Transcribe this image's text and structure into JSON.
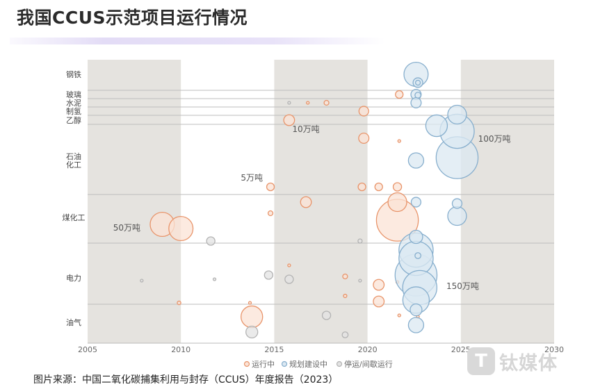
{
  "title": "我国CCUS示范项目运行情况",
  "source": "图片来源：中国二氧化碳捕集利用与封存（CCUS）年度报告（2023）",
  "watermark": {
    "logo": "T",
    "text": "钛媒体"
  },
  "chart_data": {
    "type": "scatter",
    "xlim": [
      2005,
      2030
    ],
    "x_ticks": [
      "2005",
      "2010",
      "2015",
      "2020",
      "2025",
      "2030"
    ],
    "shaded_periods": [
      [
        2005,
        2010
      ],
      [
        2015,
        2020
      ],
      [
        2025,
        2030
      ]
    ],
    "categories": [
      {
        "key": "steel",
        "label": [
          "钢铁"
        ]
      },
      {
        "key": "glass",
        "label": [
          "玻璃"
        ]
      },
      {
        "key": "cement",
        "label": [
          "水泥"
        ]
      },
      {
        "key": "hydrogen",
        "label": [
          "制氢"
        ]
      },
      {
        "key": "ethanol",
        "label": [
          "乙醇"
        ]
      },
      {
        "key": "petrochem",
        "label": [
          "石油",
          "化工"
        ]
      },
      {
        "key": "coalchem",
        "label": [
          "煤化工"
        ]
      },
      {
        "key": "power",
        "label": [
          "电力"
        ]
      },
      {
        "key": "oilgas",
        "label": [
          "油气"
        ]
      }
    ],
    "size_annotations": [
      {
        "text": "10万吨",
        "x": 2016.7,
        "cat": "ethanol"
      },
      {
        "text": "100万吨",
        "x": 2026.8,
        "cat": "petrochem"
      },
      {
        "text": "5万吨",
        "x": 2013.8,
        "cat": "petrochem"
      },
      {
        "text": "50万吨",
        "x": 2007.1,
        "cat": "coalchem"
      },
      {
        "text": "150万吨",
        "x": 2025.1,
        "cat": "power"
      }
    ],
    "legend": [
      {
        "key": "operating",
        "label": "运行中",
        "stroke": "#e8946a",
        "fill": "#fbe3d6"
      },
      {
        "key": "planned",
        "label": "规划建设中",
        "stroke": "#86aecd",
        "fill": "#dbe8f2"
      },
      {
        "key": "stopped",
        "label": "停运/间歇运行",
        "stroke": "#b3b3b3",
        "fill": "#e3e3e3"
      }
    ],
    "series": [
      {
        "name": "运行中",
        "key": "operating",
        "points": [
          {
            "x": 2016.8,
            "cat": "cement",
            "s": 0.2
          },
          {
            "x": 2017.8,
            "cat": "cement",
            "s": 2
          },
          {
            "x": 2015.8,
            "cat": "ethanol",
            "s": 10
          },
          {
            "x": 2019.8,
            "cat": "hydrogen",
            "s": 8
          },
          {
            "x": 2021.7,
            "cat": "glass",
            "s": 5
          },
          {
            "x": 2019.8,
            "cat": "petrochem",
            "s": 9,
            "dy": -0.8
          },
          {
            "x": 2021.7,
            "cat": "petrochem",
            "s": 0.6,
            "dy": -0.7
          },
          {
            "x": 2014.8,
            "cat": "petrochem",
            "s": 5,
            "dy": 0.95
          },
          {
            "x": 2019.7,
            "cat": "petrochem",
            "s": 5,
            "dy": 0.95
          },
          {
            "x": 2020.6,
            "cat": "petrochem",
            "s": 5,
            "dy": 0.95
          },
          {
            "x": 2021.6,
            "cat": "coalchem",
            "s": 6,
            "dy": -1.1
          },
          {
            "x": 2021.6,
            "cat": "coalchem",
            "s": 30,
            "dy": -0.55
          },
          {
            "x": 2016.7,
            "cat": "coalchem",
            "s": 10,
            "dy": -0.55
          },
          {
            "x": 2014.8,
            "cat": "coalchem",
            "s": 2,
            "dy": -0.15
          },
          {
            "x": 2009.0,
            "cat": "coalchem",
            "s": 50,
            "dy": 0.25
          },
          {
            "x": 2010.0,
            "cat": "coalchem",
            "s": 50,
            "dy": 0.4
          },
          {
            "x": 2021.6,
            "cat": "coalchem",
            "s": 150,
            "dy": 0.1
          },
          {
            "x": 2015.8,
            "cat": "power",
            "s": 0.4,
            "dy": -0.45
          },
          {
            "x": 2018.8,
            "cat": "power",
            "s": 2,
            "dy": -0.05
          },
          {
            "x": 2021.6,
            "cat": "power",
            "s": 0.5,
            "dy": 0.15
          },
          {
            "x": 2020.6,
            "cat": "power",
            "s": 10,
            "dy": 0.25
          },
          {
            "x": 2018.8,
            "cat": "power",
            "s": 1,
            "dy": 0.65
          },
          {
            "x": 2009.9,
            "cat": "power",
            "s": 1.1,
            "dy": 0.9
          },
          {
            "x": 2020.6,
            "cat": "power",
            "s": 10,
            "dy": 0.85
          },
          {
            "x": 2013.7,
            "cat": "oilgas",
            "s": 0.5,
            "dy": -0.7
          },
          {
            "x": 2013.8,
            "cat": "oilgas",
            "s": 40,
            "dy": -0.2
          },
          {
            "x": 2021.7,
            "cat": "oilgas",
            "s": 0.1,
            "dy": -0.25
          },
          {
            "x": 2022.7,
            "cat": "oilgas",
            "s": 0.1,
            "dy": -0.2
          }
        ]
      },
      {
        "name": "规划建设中",
        "key": "planned",
        "points": [
          {
            "x": 2022.6,
            "cat": "steel",
            "s": 50,
            "dy": 0
          },
          {
            "x": 2022.7,
            "cat": "steel",
            "s": 8,
            "dy": 0.3
          },
          {
            "x": 2022.7,
            "cat": "steel",
            "s": 2,
            "dy": 0.3
          },
          {
            "x": 2022.7,
            "cat": "steel",
            "s": 3,
            "dy": 0.75
          },
          {
            "x": 2022.6,
            "cat": "cement",
            "s": 9,
            "dy": -0.3
          },
          {
            "x": 2022.6,
            "cat": "cement",
            "s": 9,
            "dy": 0
          },
          {
            "x": 2024.8,
            "cat": "petrochem",
            "s": 30,
            "dy": -1.65
          },
          {
            "x": 2023.7,
            "cat": "petrochem",
            "s": 40,
            "dy": -1.25
          },
          {
            "x": 2024.8,
            "cat": "petrochem",
            "s": 100,
            "dy": -1.05
          },
          {
            "x": 2024.8,
            "cat": "petrochem",
            "s": 150,
            "dy": -0.1
          },
          {
            "x": 2022.6,
            "cat": "petrochem",
            "s": 20,
            "dy": 0
          },
          {
            "x": 2024.8,
            "cat": "petrochem",
            "s": 30,
            "dy": 2.0
          },
          {
            "x": 2024.8,
            "cat": "coalchem",
            "s": 8,
            "dy": -0.5
          },
          {
            "x": 2022.6,
            "cat": "coalchem",
            "s": 8,
            "dy": -0.55
          },
          {
            "x": 2022.6,
            "cat": "coalchem",
            "s": 15,
            "dy": 0.7
          },
          {
            "x": 2022.6,
            "cat": "power",
            "s": 100,
            "dy": -1.0
          },
          {
            "x": 2022.6,
            "cat": "power",
            "s": 100,
            "dy": -0.7
          },
          {
            "x": 2022.6,
            "cat": "power",
            "s": 150,
            "dy": -0.1
          },
          {
            "x": 2022.7,
            "cat": "power",
            "s": 3,
            "dy": -0.8
          },
          {
            "x": 2022.8,
            "cat": "power",
            "s": 100,
            "dy": 0.35
          },
          {
            "x": 2022.6,
            "cat": "power",
            "s": 60,
            "dy": 0.8
          },
          {
            "x": 2022.6,
            "cat": "oilgas",
            "s": 12,
            "dy": -0.45
          },
          {
            "x": 2022.6,
            "cat": "oilgas",
            "s": 20,
            "dy": 0.1
          }
        ]
      },
      {
        "name": "停运/间歇运行",
        "key": "stopped",
        "points": [
          {
            "x": 2015.8,
            "cat": "cement",
            "s": 0.3
          },
          {
            "x": 2011.6,
            "cat": "coalchem",
            "s": 6,
            "dy": 0.85
          },
          {
            "x": 2019.6,
            "cat": "coalchem",
            "s": 1.5,
            "dy": 0.85
          },
          {
            "x": 2007.9,
            "cat": "power",
            "s": 0.3,
            "dy": 0.1
          },
          {
            "x": 2011.8,
            "cat": "power",
            "s": 0.3,
            "dy": 0.05
          },
          {
            "x": 2014.7,
            "cat": "power",
            "s": 6,
            "dy": -0.1
          },
          {
            "x": 2015.8,
            "cat": "power",
            "s": 6,
            "dy": 0.05
          },
          {
            "x": 2019.6,
            "cat": "power",
            "s": 0.1,
            "dy": 0.1
          },
          {
            "x": 2017.8,
            "cat": "oilgas",
            "s": 6,
            "dy": -0.25
          },
          {
            "x": 2013.8,
            "cat": "oilgas",
            "s": 12,
            "dy": 0.35
          },
          {
            "x": 2018.8,
            "cat": "oilgas",
            "s": 3,
            "dy": 0.45
          }
        ]
      }
    ]
  }
}
